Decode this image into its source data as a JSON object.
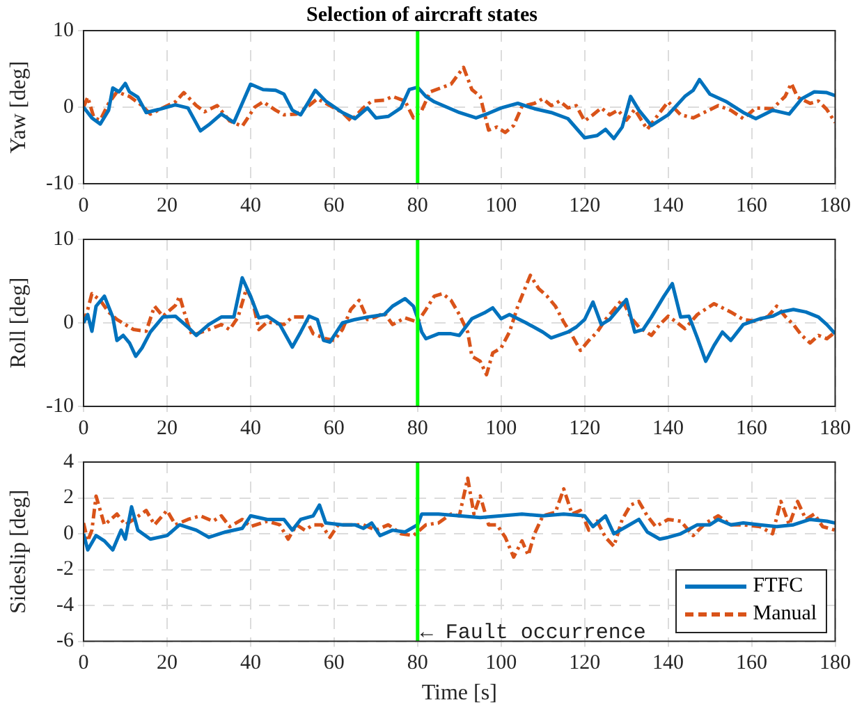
{
  "chart_data": [
    {
      "type": "line",
      "title": "Selection of aircraft states",
      "ylabel": "Yaw [deg]",
      "xlim": [
        0,
        180
      ],
      "xticks": [
        0,
        20,
        40,
        60,
        80,
        100,
        120,
        140,
        160,
        180
      ],
      "ylim": [
        -10,
        10
      ],
      "yticks": [
        -10,
        0,
        10
      ],
      "grid": true,
      "legend": false,
      "ref_lines": [
        {
          "axis": "x",
          "value": 80,
          "color": "#00ff00"
        }
      ],
      "series": [
        {
          "color": "#0072bd",
          "line_style": "solid",
          "x": [
            0,
            2,
            4,
            6,
            7,
            8.5,
            10,
            11,
            13,
            15,
            18,
            22,
            25,
            28,
            30,
            33,
            36,
            38,
            40,
            43,
            46,
            48,
            50,
            52,
            54,
            55.5,
            58,
            62,
            65,
            68,
            70,
            73,
            76,
            78,
            80,
            82,
            84,
            90,
            94,
            97,
            100,
            104,
            108,
            112,
            116,
            120,
            123,
            125,
            127,
            129,
            131,
            133,
            136,
            140,
            144,
            146,
            147.5,
            150,
            154,
            158,
            161,
            165,
            169,
            172,
            175,
            178,
            180
          ],
          "values": [
            0,
            -1.4,
            -2.2,
            -0.4,
            2.5,
            2,
            3.1,
            2,
            1.3,
            -0.7,
            -0.3,
            0.3,
            -0.1,
            -3.1,
            -2.3,
            -0.9,
            -2,
            0.5,
            3,
            2.3,
            2.2,
            1.7,
            -0.4,
            -1,
            0.8,
            2.2,
            0.8,
            -0.7,
            -1.5,
            -0.1,
            -1.4,
            -1.2,
            -0.1,
            2.3,
            2.6,
            1.4,
            0.7,
            -0.7,
            -1.4,
            -0.8,
            -0.1,
            0.5,
            -0.2,
            -0.7,
            -1.5,
            -4,
            -3.7,
            -2.9,
            -4.1,
            -2.6,
            1.4,
            -0.4,
            -2.4,
            -1,
            1.4,
            2.2,
            3.6,
            1.7,
            0.7,
            -0.7,
            -1.5,
            -0.4,
            -0.9,
            1.1,
            2,
            1.9,
            1.5
          ]
        },
        {
          "color": "#d95319",
          "line_style": "dashed",
          "x": [
            0,
            1,
            2.5,
            4,
            6,
            8,
            11,
            14,
            16,
            19,
            22,
            24,
            27,
            29,
            32,
            35,
            38,
            41,
            43,
            46,
            48,
            51,
            54,
            56,
            59,
            62,
            64,
            67,
            69,
            72,
            74,
            77,
            79,
            81,
            83,
            86,
            88,
            91,
            93,
            95,
            97,
            99,
            101,
            103,
            105,
            108,
            110,
            112,
            114,
            116,
            118,
            120,
            122,
            124,
            126,
            128,
            130,
            132,
            135,
            138,
            140,
            143,
            146,
            149,
            152,
            155,
            158,
            161,
            165,
            168,
            169.5,
            171,
            174,
            176,
            178,
            180
          ],
          "values": [
            0,
            1.3,
            -1.4,
            -1.7,
            0.5,
            2,
            1.4,
            0.2,
            -0.9,
            -0.1,
            0.7,
            1.9,
            0.2,
            -0.6,
            0.2,
            -1.8,
            -2.5,
            0,
            0.7,
            -0.4,
            -1,
            -0.9,
            0.2,
            1.1,
            0.2,
            -0.7,
            -1.8,
            -0.1,
            0.8,
            0.9,
            1.4,
            0.8,
            -1.4,
            -0.4,
            2,
            2.6,
            3,
            5.2,
            2.3,
            1.4,
            -3,
            -2.6,
            -3.3,
            -2.4,
            0.1,
            0.5,
            1.1,
            0.2,
            0.8,
            -0.1,
            0.2,
            -1.8,
            -1,
            -0.1,
            -1,
            -0.4,
            -1.7,
            -0.3,
            -2.9,
            -0.7,
            0.7,
            -1,
            -1.4,
            -0.6,
            0.2,
            -0.4,
            -1.5,
            -0.1,
            -0.2,
            1.4,
            3.1,
            1.3,
            0.5,
            0.8,
            -0.3,
            -2
          ]
        }
      ]
    },
    {
      "type": "line",
      "ylabel": "Roll [deg]",
      "xlim": [
        0,
        180
      ],
      "xticks": [
        0,
        20,
        40,
        60,
        80,
        100,
        120,
        140,
        160,
        180
      ],
      "ylim": [
        -10,
        10
      ],
      "yticks": [
        -10,
        0,
        10
      ],
      "grid": true,
      "legend": false,
      "ref_lines": [
        {
          "axis": "x",
          "value": 80,
          "color": "#00ff00"
        }
      ],
      "series": [
        {
          "color": "#0072bd",
          "line_style": "solid",
          "x": [
            0,
            1,
            2,
            3,
            5,
            7,
            8,
            9.5,
            11,
            12.5,
            14,
            16,
            19,
            22,
            25,
            27,
            30,
            33,
            36,
            38,
            40,
            42,
            44,
            47,
            50,
            52,
            54,
            56,
            57.5,
            59,
            62,
            65,
            68,
            72,
            74,
            77,
            79,
            80,
            81,
            82,
            85,
            88,
            90,
            93,
            96,
            98,
            100,
            102,
            106,
            110,
            112,
            116,
            118,
            120,
            122,
            124,
            126,
            128,
            130,
            132,
            134,
            136,
            139,
            141,
            143,
            145,
            147,
            149,
            151,
            153,
            155,
            158,
            162,
            165,
            167,
            170,
            173,
            176,
            178,
            180
          ],
          "values": [
            0,
            1,
            -1,
            2,
            3.2,
            0.7,
            -2.1,
            -1.5,
            -2.4,
            -4,
            -3,
            -1.1,
            0.7,
            0.8,
            -0.5,
            -1.5,
            -0.2,
            0.7,
            0.7,
            5.4,
            3.2,
            0.6,
            0.8,
            -0.2,
            -2.9,
            -1.1,
            0.8,
            0.4,
            -2.1,
            -2.3,
            0,
            0.4,
            0.7,
            1,
            2,
            2.9,
            2,
            0.6,
            -1.1,
            -1.9,
            -1.3,
            -1.3,
            -1.5,
            0.5,
            1.2,
            1.8,
            0.5,
            1,
            0,
            -1.1,
            -1.8,
            -1.1,
            -0.5,
            0.4,
            2.5,
            -0.2,
            0.4,
            1.6,
            2.8,
            -1.1,
            -0.8,
            0.7,
            3.2,
            4.7,
            0.7,
            0.8,
            -1.8,
            -4.6,
            -2.7,
            -1.1,
            -2.1,
            -0.2,
            0.5,
            0.8,
            1.3,
            1.6,
            1.3,
            0.7,
            -0.2,
            -1.3
          ]
        },
        {
          "color": "#d95319",
          "line_style": "dashed",
          "x": [
            0,
            1,
            2,
            4,
            6,
            8,
            10,
            12,
            15,
            17,
            19,
            22,
            23,
            25,
            26,
            30,
            33,
            35,
            37,
            39,
            40.5,
            42,
            44,
            48,
            50,
            53,
            55,
            58,
            60,
            62,
            64,
            66,
            68,
            70,
            72,
            74,
            77,
            80,
            82,
            84,
            86,
            88,
            90,
            92,
            93,
            95,
            96.5,
            98,
            100,
            102,
            104,
            107,
            109,
            111,
            113,
            115,
            117,
            119,
            121,
            123,
            125,
            127,
            129,
            131,
            133,
            136,
            138,
            140,
            142,
            144,
            147,
            151,
            155,
            158,
            161,
            164,
            166,
            168,
            170,
            172,
            174,
            176,
            178,
            180
          ],
          "values": [
            0,
            1.6,
            3.5,
            2.7,
            1.3,
            0.4,
            -0.2,
            -0.8,
            -1,
            2,
            0.8,
            2.1,
            3.2,
            -0.2,
            -1.5,
            -0.8,
            -0.2,
            -0.8,
            0.7,
            4.1,
            2.6,
            -0.8,
            0.1,
            -0.2,
            0.7,
            0.7,
            -1.3,
            -1.9,
            -2.1,
            -0.8,
            1.6,
            2.7,
            0.4,
            0.7,
            1.2,
            -0.2,
            0.6,
            0.1,
            1.6,
            3.2,
            3.5,
            2.7,
            1,
            -1.1,
            -4,
            -4.6,
            -6.2,
            -3.6,
            -3,
            -1.1,
            2,
            5.7,
            4.1,
            3.2,
            2,
            0.1,
            -1.5,
            -3.3,
            -2.1,
            -1.1,
            0.4,
            1.6,
            2.8,
            0.7,
            -0.5,
            -1.5,
            -0.2,
            0.8,
            0.1,
            -0.7,
            1,
            2.3,
            1.3,
            0.4,
            0.2,
            0.8,
            2,
            0.8,
            -0.2,
            -1.5,
            -2.4,
            -1.5,
            -1.9,
            -1.1
          ]
        }
      ]
    },
    {
      "type": "line",
      "ylabel": "Sideslip [deg]",
      "xlabel": "Time [s]",
      "xlim": [
        0,
        180
      ],
      "xticks": [
        0,
        20,
        40,
        60,
        80,
        100,
        120,
        140,
        160,
        180
      ],
      "ylim": [
        -6,
        4
      ],
      "yticks": [
        -6,
        -4,
        -2,
        0,
        2,
        4
      ],
      "grid": true,
      "legend": "bottom right",
      "ref_lines": [
        {
          "axis": "x",
          "value": 80,
          "color": "#00ff00"
        }
      ],
      "annotations": [
        {
          "text": "← Fault occurrence",
          "x": 80,
          "y": -5.5
        }
      ],
      "series": [
        {
          "name": "FTFC",
          "color": "#0072bd",
          "line_style": "solid",
          "x": [
            0,
            1,
            3,
            5,
            7,
            9,
            10,
            11.5,
            13,
            16,
            20,
            23,
            27,
            30,
            34,
            38,
            40,
            44,
            48,
            50,
            52,
            55,
            56.5,
            58,
            62,
            65,
            67,
            69,
            71,
            74,
            77,
            80,
            81,
            85,
            90,
            95,
            100,
            105,
            110,
            115,
            120,
            122,
            125,
            127,
            130,
            133,
            135,
            138,
            140,
            143,
            147,
            150,
            152,
            155,
            158,
            162,
            166,
            170,
            174,
            178,
            180
          ],
          "values": [
            0,
            -0.9,
            -0.1,
            -0.4,
            -0.9,
            0.2,
            -0.3,
            1.5,
            0.2,
            -0.3,
            -0.1,
            0.5,
            0.2,
            -0.2,
            0.1,
            0.3,
            1,
            0.8,
            0.8,
            0.2,
            0.8,
            1,
            1.6,
            0.6,
            0.5,
            0.5,
            0.3,
            0.6,
            -0.1,
            0.2,
            0.1,
            0.5,
            1.1,
            1.1,
            1,
            0.9,
            1,
            1.1,
            1,
            1.1,
            1,
            0.4,
            1,
            0,
            0.4,
            0.8,
            0.1,
            -0.3,
            -0.2,
            0,
            0.5,
            0.5,
            0.8,
            0.5,
            0.6,
            0.5,
            0.4,
            0.5,
            0.8,
            0.7,
            0.6
          ]
        },
        {
          "name": "Manual",
          "color": "#d95319",
          "line_style": "dashed",
          "x": [
            0,
            1,
            2,
            3,
            5,
            8,
            10,
            12,
            15,
            17,
            20,
            22,
            25,
            28,
            31,
            33,
            35,
            38,
            40,
            44,
            47,
            49,
            51,
            53,
            55,
            57,
            59,
            61,
            64,
            67,
            70,
            73,
            76,
            79,
            82,
            85,
            88,
            90,
            92,
            93.5,
            95,
            97,
            99,
            101,
            103,
            105,
            106.5,
            108,
            110,
            113,
            115,
            117,
            119,
            121,
            123,
            125,
            127,
            129,
            131,
            133,
            135,
            137,
            140,
            143,
            146,
            149,
            152,
            155,
            158,
            162,
            165,
            167,
            169,
            171,
            173,
            175,
            177,
            180
          ],
          "values": [
            0.6,
            -0.4,
            0.2,
            2.1,
            0.5,
            1.1,
            0.5,
            0.8,
            1.3,
            0.5,
            1.3,
            0.5,
            0.8,
            1,
            0.7,
            1,
            0.4,
            0.8,
            0.4,
            0.7,
            0.5,
            -0.3,
            0.5,
            0.2,
            0.5,
            0.5,
            -0.2,
            0.5,
            0.5,
            0.5,
            0.2,
            0.5,
            0,
            -0.1,
            0.5,
            0.6,
            1.1,
            1,
            3.1,
            1.1,
            2.1,
            0.5,
            0.5,
            -0.2,
            -1.3,
            -0.4,
            -1.2,
            0,
            1,
            1.2,
            2.5,
            1.1,
            1.3,
            0.2,
            0.7,
            -0.2,
            -0.7,
            0.8,
            1.6,
            1.8,
            1,
            0.4,
            0.8,
            0.7,
            -0.1,
            0.6,
            1,
            0.5,
            0.5,
            0.4,
            0,
            1.8,
            0.5,
            1.8,
            0.8,
            1.1,
            0.4,
            0.2
          ]
        }
      ]
    }
  ]
}
